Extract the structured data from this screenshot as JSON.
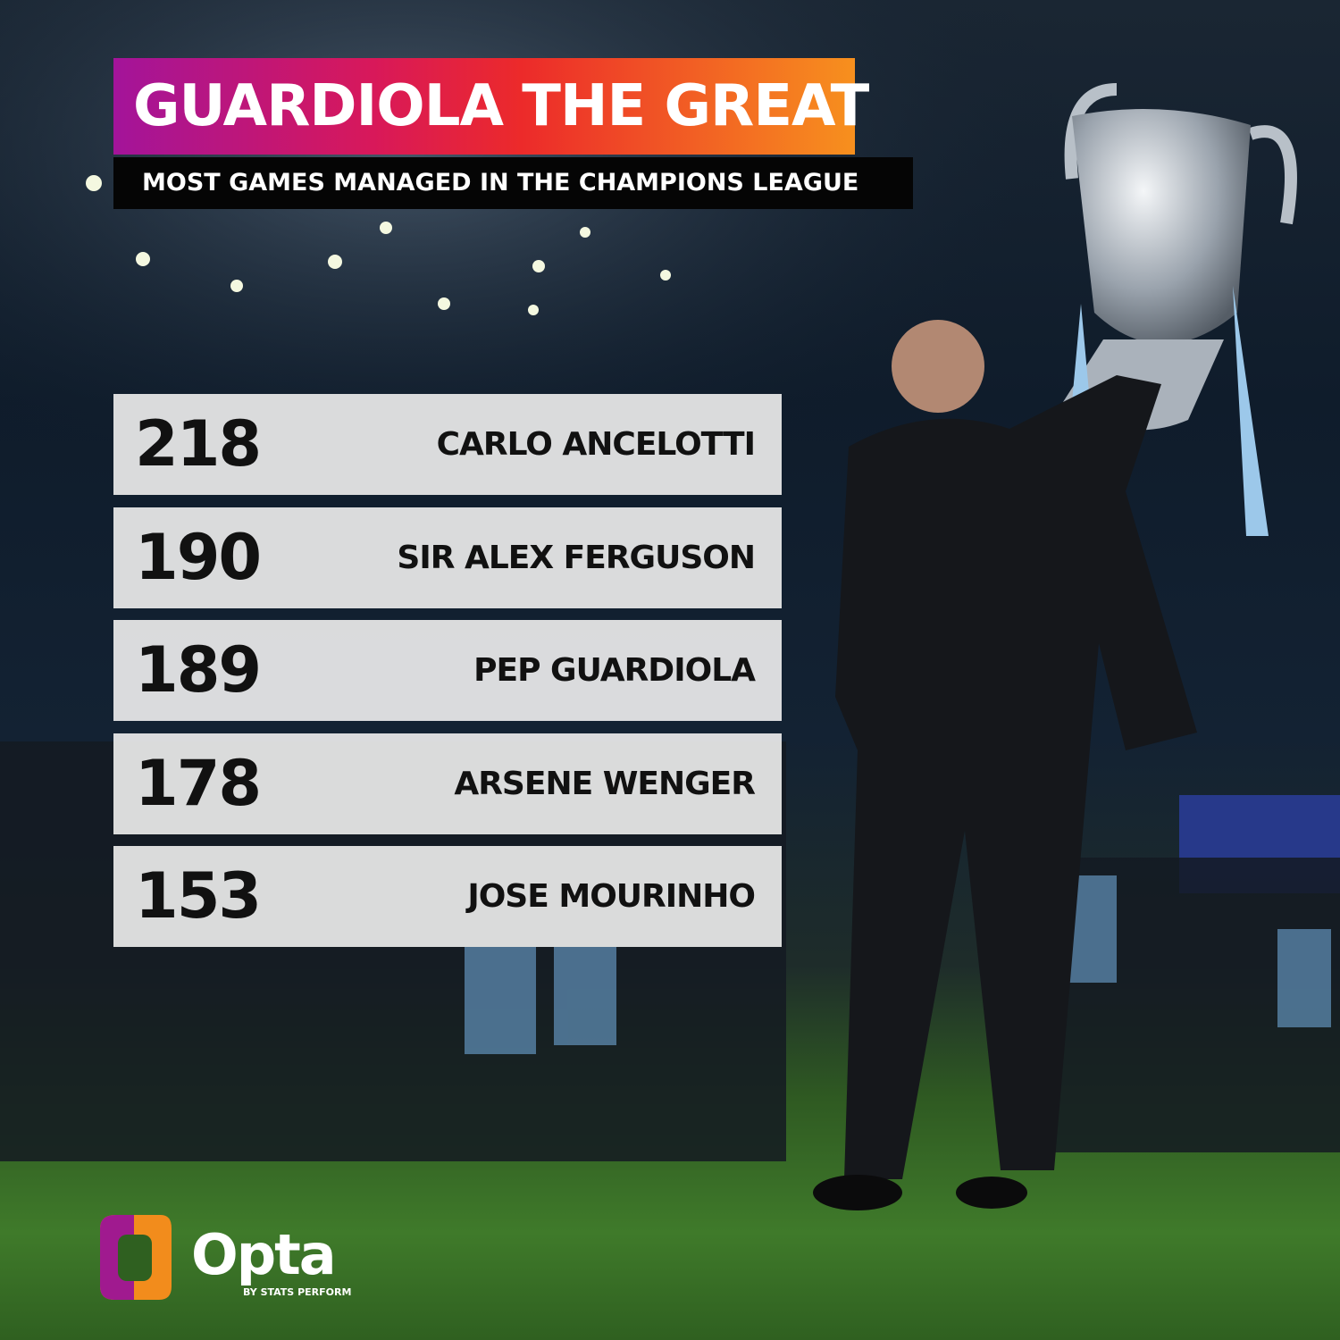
{
  "header": {
    "title": "GUARDIOLA THE GREAT",
    "subtitle": "MOST GAMES MANAGED IN THE CHAMPIONS LEAGUE"
  },
  "table": {
    "rows": [
      {
        "value": "218",
        "name": "CARLO ANCELOTTI"
      },
      {
        "value": "190",
        "name": "SIR ALEX FERGUSON"
      },
      {
        "value": "189",
        "name": "PEP GUARDIOLA"
      },
      {
        "value": "178",
        "name": "ARSENE WENGER"
      },
      {
        "value": "153",
        "name": "JOSE MOURINHO"
      }
    ]
  },
  "logo": {
    "brand": "Opta",
    "tagline": "BY STATS PERFORM"
  }
}
